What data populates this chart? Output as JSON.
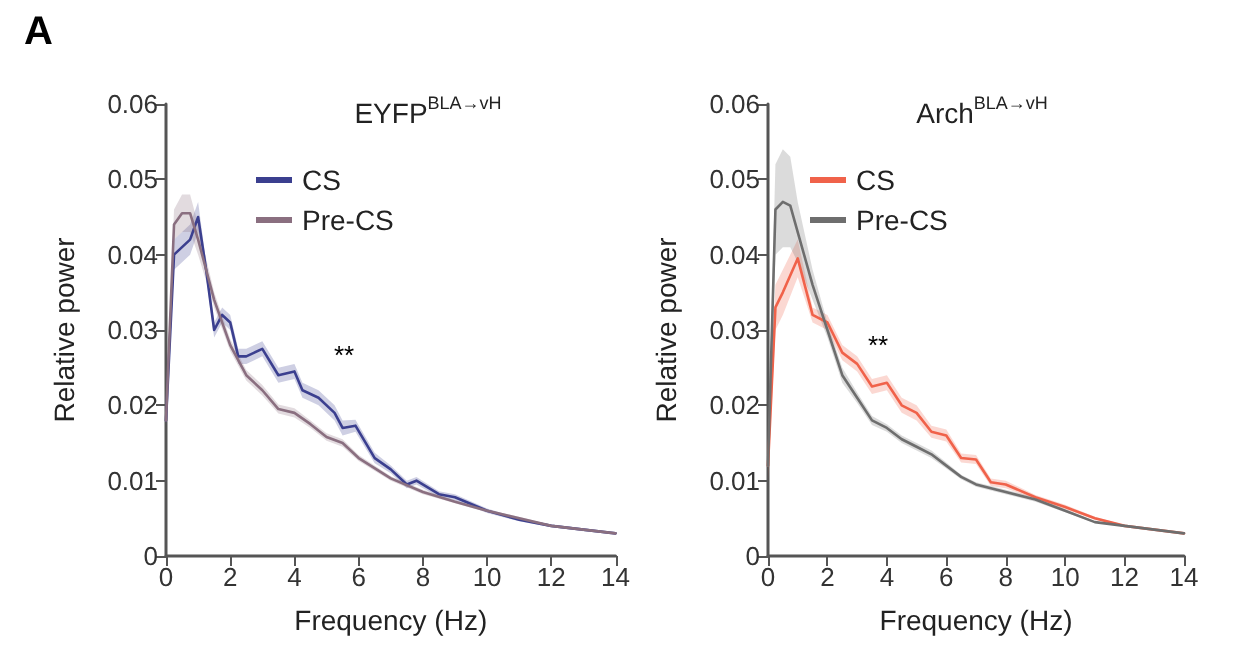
{
  "chart_data": [
    {
      "type": "line",
      "title": "EYFP$^{BLA→vH}$",
      "xlabel": "Frequency (Hz)",
      "ylabel": "Relative power",
      "annotations": [
        "A",
        "**"
      ],
      "xlim": [
        0,
        14
      ],
      "xticks": [
        0,
        2,
        4,
        6,
        8,
        10,
        12,
        14
      ],
      "ylim": [
        0,
        0.06
      ],
      "yticks": [
        0,
        0.01,
        0.02,
        0.03,
        0.04,
        0.05,
        0.06
      ],
      "grid": false,
      "legend": "top left",
      "marker": "none",
      "line_style": "solid",
      "series": [
        {
          "name": "CS",
          "color": "#3b3f8f",
          "x": [
            0,
            0.25,
            0.5,
            0.75,
            1,
            1.25,
            1.5,
            1.75,
            2,
            2.25,
            2.5,
            2.75,
            3,
            3.5,
            4,
            4.25,
            4.75,
            5.25,
            5.5,
            5.9,
            6.5,
            7,
            7.5,
            7.8,
            8.5,
            9,
            10,
            11,
            12,
            13,
            14
          ],
          "values": [
            0.018,
            0.04,
            0.041,
            0.042,
            0.045,
            0.038,
            0.03,
            0.032,
            0.031,
            0.0265,
            0.0265,
            0.027,
            0.0275,
            0.024,
            0.0245,
            0.022,
            0.021,
            0.019,
            0.017,
            0.0173,
            0.013,
            0.0115,
            0.0095,
            0.01,
            0.0082,
            0.0078,
            0.006,
            0.0048,
            0.004,
            0.0035,
            0.003
          ],
          "lower": [
            0.017,
            0.038,
            0.039,
            0.04,
            0.043,
            0.037,
            0.029,
            0.031,
            0.03,
            0.0255,
            0.0255,
            0.026,
            0.0265,
            0.023,
            0.0235,
            0.021,
            0.02,
            0.018,
            0.016,
            0.0165,
            0.0123,
            0.011,
            0.009,
            0.0095,
            0.0078,
            0.0074,
            0.0057,
            0.0046,
            0.0038,
            0.0033,
            0.0029
          ],
          "upper": [
            0.019,
            0.042,
            0.043,
            0.044,
            0.047,
            0.039,
            0.031,
            0.033,
            0.032,
            0.0275,
            0.0275,
            0.028,
            0.0285,
            0.025,
            0.0255,
            0.023,
            0.022,
            0.02,
            0.018,
            0.0181,
            0.0137,
            0.012,
            0.01,
            0.0105,
            0.0086,
            0.0082,
            0.0063,
            0.005,
            0.0042,
            0.0037,
            0.0031
          ]
        },
        {
          "name": "Pre-CS",
          "color": "#8a6f80",
          "x": [
            0,
            0.25,
            0.5,
            0.75,
            1,
            1.5,
            2,
            2.5,
            3,
            3.5,
            4,
            4.5,
            5,
            5.5,
            6,
            7,
            8,
            9,
            10,
            11,
            12,
            13,
            14
          ],
          "values": [
            0.018,
            0.044,
            0.0455,
            0.0455,
            0.042,
            0.034,
            0.028,
            0.024,
            0.022,
            0.0195,
            0.019,
            0.0175,
            0.0158,
            0.015,
            0.013,
            0.0103,
            0.0085,
            0.0072,
            0.006,
            0.005,
            0.004,
            0.0035,
            0.003
          ],
          "lower": [
            0.017,
            0.042,
            0.043,
            0.043,
            0.04,
            0.033,
            0.0272,
            0.0233,
            0.0213,
            0.0189,
            0.0184,
            0.017,
            0.0153,
            0.0145,
            0.0126,
            0.01,
            0.0082,
            0.007,
            0.0058,
            0.0048,
            0.0039,
            0.0034,
            0.0029
          ],
          "upper": [
            0.019,
            0.046,
            0.048,
            0.048,
            0.044,
            0.035,
            0.0288,
            0.0247,
            0.0227,
            0.0201,
            0.0196,
            0.018,
            0.0163,
            0.0155,
            0.0134,
            0.0106,
            0.0088,
            0.0074,
            0.0062,
            0.0052,
            0.0041,
            0.0036,
            0.0031
          ]
        }
      ]
    },
    {
      "type": "line",
      "title": "Arch$^{BLA→vH}$",
      "xlabel": "Frequency (Hz)",
      "ylabel": "Relative power",
      "annotations": [
        "**"
      ],
      "xlim": [
        0,
        14
      ],
      "xticks": [
        0,
        2,
        4,
        6,
        8,
        10,
        12,
        14
      ],
      "ylim": [
        0,
        0.06
      ],
      "yticks": [
        0,
        0.01,
        0.02,
        0.03,
        0.04,
        0.05,
        0.06
      ],
      "grid": false,
      "legend": "top left",
      "marker": "none",
      "line_style": "solid",
      "series": [
        {
          "name": "CS",
          "color": "#f0624a",
          "x": [
            0,
            0.25,
            0.5,
            1,
            1.5,
            2,
            2.5,
            3,
            3.5,
            4,
            4.5,
            5,
            5.5,
            6,
            6.5,
            7,
            7.5,
            8,
            9,
            10,
            11,
            12,
            13,
            14
          ],
          "values": [
            0.012,
            0.033,
            0.035,
            0.0395,
            0.032,
            0.031,
            0.027,
            0.0255,
            0.0225,
            0.023,
            0.02,
            0.019,
            0.0165,
            0.016,
            0.013,
            0.0128,
            0.0098,
            0.0095,
            0.0078,
            0.0065,
            0.005,
            0.004,
            0.0035,
            0.003
          ],
          "lower": [
            0.01,
            0.03,
            0.032,
            0.037,
            0.031,
            0.03,
            0.026,
            0.0245,
            0.0215,
            0.022,
            0.019,
            0.018,
            0.0157,
            0.0152,
            0.0124,
            0.0122,
            0.0093,
            0.009,
            0.0075,
            0.0062,
            0.0048,
            0.0039,
            0.0034,
            0.0029
          ],
          "upper": [
            0.014,
            0.036,
            0.038,
            0.042,
            0.033,
            0.032,
            0.028,
            0.0265,
            0.0235,
            0.024,
            0.021,
            0.02,
            0.0173,
            0.0168,
            0.0136,
            0.0134,
            0.0103,
            0.01,
            0.0081,
            0.0068,
            0.0052,
            0.0041,
            0.0036,
            0.0031
          ]
        },
        {
          "name": "Pre-CS",
          "color": "#6e6e6e",
          "x": [
            0,
            0.25,
            0.5,
            0.75,
            1,
            1.5,
            2,
            2.5,
            3,
            3.5,
            4,
            4.5,
            5,
            5.5,
            6,
            6.5,
            7,
            8,
            9,
            10,
            11,
            12,
            13,
            14
          ],
          "values": [
            0.012,
            0.046,
            0.047,
            0.0465,
            0.043,
            0.036,
            0.03,
            0.024,
            0.021,
            0.018,
            0.017,
            0.0155,
            0.0145,
            0.0135,
            0.012,
            0.0105,
            0.0095,
            0.0085,
            0.0075,
            0.006,
            0.0045,
            0.004,
            0.0035,
            0.003
          ],
          "lower": [
            0.01,
            0.04,
            0.041,
            0.041,
            0.039,
            0.034,
            0.029,
            0.023,
            0.0203,
            0.0174,
            0.0165,
            0.015,
            0.014,
            0.013,
            0.0116,
            0.0102,
            0.0092,
            0.0082,
            0.0072,
            0.0058,
            0.0044,
            0.0039,
            0.0034,
            0.0029
          ],
          "upper": [
            0.014,
            0.052,
            0.054,
            0.053,
            0.047,
            0.038,
            0.031,
            0.025,
            0.0217,
            0.0186,
            0.0175,
            0.016,
            0.015,
            0.014,
            0.0124,
            0.0108,
            0.0098,
            0.0088,
            0.0078,
            0.0062,
            0.0046,
            0.0041,
            0.0036,
            0.0031
          ]
        }
      ]
    }
  ]
}
